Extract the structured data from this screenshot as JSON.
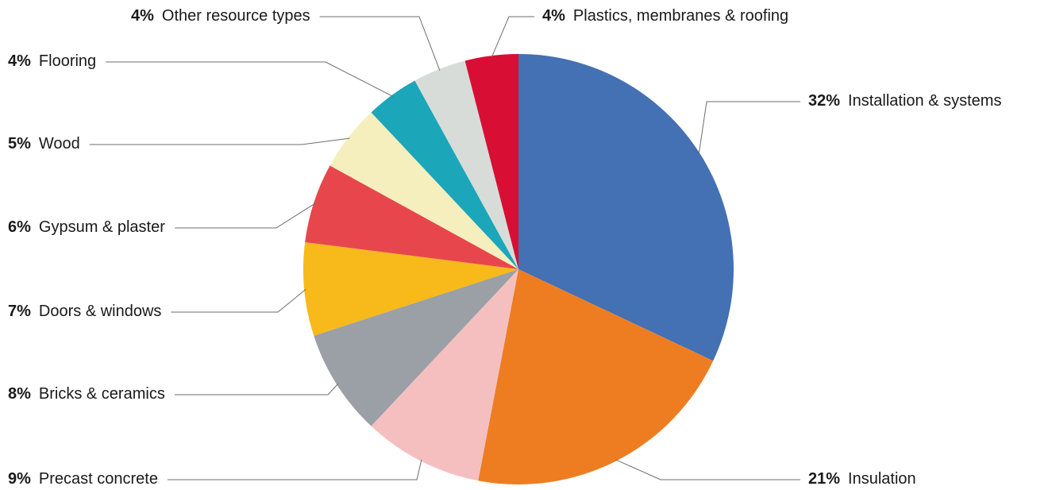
{
  "chart_data": {
    "type": "pie",
    "slices": [
      {
        "label": "Installation & systems",
        "value": 32,
        "value_label": "32%",
        "color": "#4470b4"
      },
      {
        "label": "Insulation",
        "value": 21,
        "value_label": "21%",
        "color": "#ee7d22"
      },
      {
        "label": "Precast concrete",
        "value": 9,
        "value_label": "9%",
        "color": "#f5bfc0"
      },
      {
        "label": "Bricks & ceramics",
        "value": 8,
        "value_label": "8%",
        "color": "#9aa0a6"
      },
      {
        "label": "Doors & windows",
        "value": 7,
        "value_label": "7%",
        "color": "#f8b91a"
      },
      {
        "label": "Gypsum & plaster",
        "value": 6,
        "value_label": "6%",
        "color": "#e8464d"
      },
      {
        "label": "Wood",
        "value": 5,
        "value_label": "5%",
        "color": "#f4efbc"
      },
      {
        "label": "Flooring",
        "value": 4,
        "value_label": "4%",
        "color": "#1ba6ba"
      },
      {
        "label": "Other resource types",
        "value": 4,
        "value_label": "4%",
        "color": "#d8dcd8"
      },
      {
        "label": "Plastics, membranes & roofing",
        "value": 4,
        "value_label": "4%",
        "color": "#d80e34"
      }
    ]
  }
}
